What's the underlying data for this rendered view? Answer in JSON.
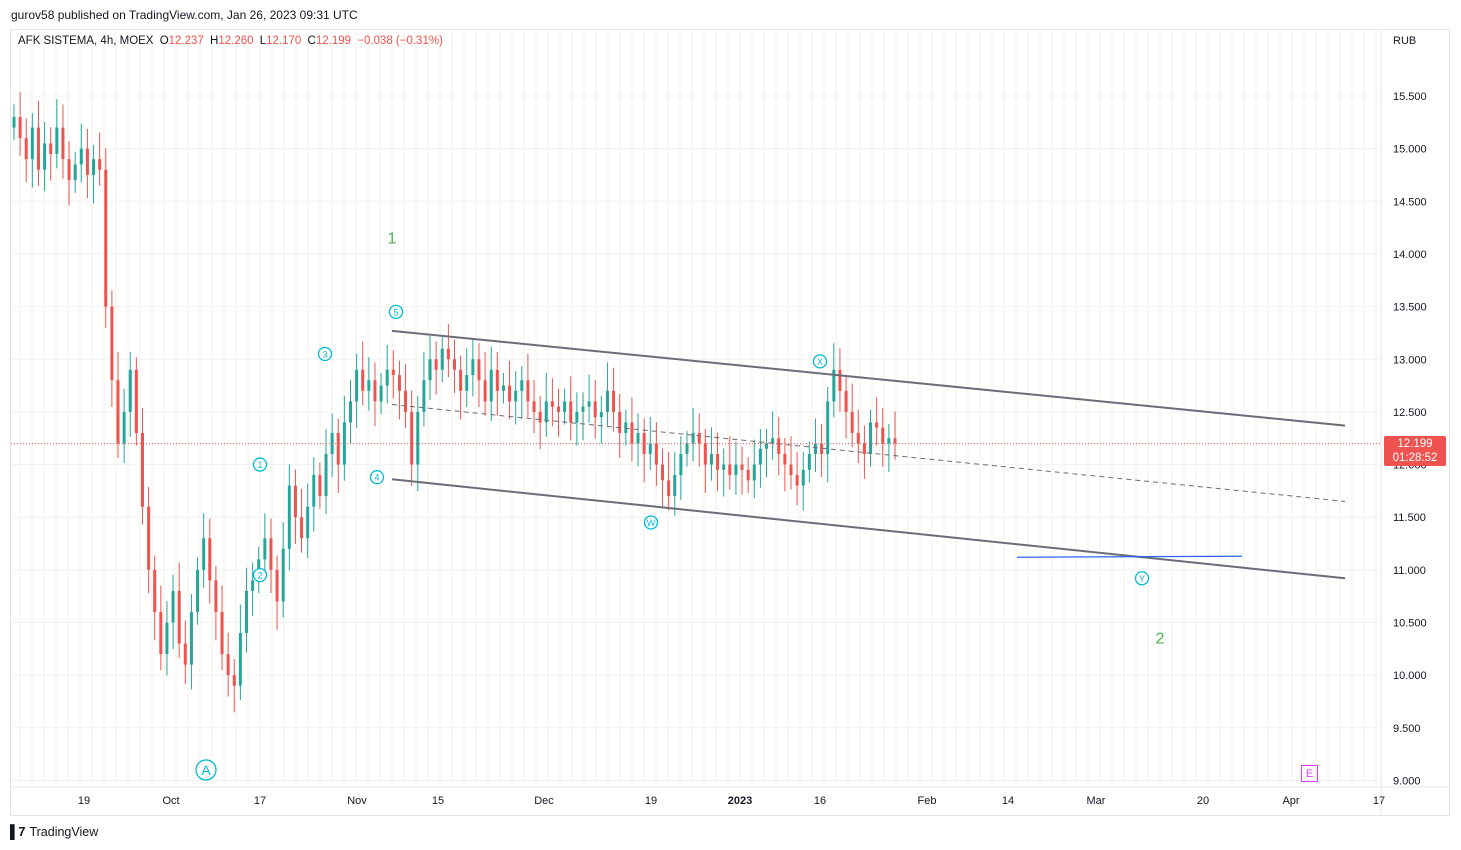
{
  "publish_line": "gurov58 published on TradingView.com, Jan 26, 2023 09:31 UTC",
  "legend": {
    "symbol": "AFK SISTEMA, 4h, MOEX",
    "o_label": "O",
    "o_value": "12.237",
    "h_label": "H",
    "h_value": "12.260",
    "l_label": "L",
    "l_value": "12.170",
    "c_label": "C",
    "c_value": "12.199",
    "change": "−0.038 (−0.31%)"
  },
  "currency": "RUB",
  "price_badge": {
    "price": "12.199",
    "countdown": "01:28:52"
  },
  "footer_brand": "TradingView",
  "e_button": "E",
  "colors": {
    "up": "#26a69a",
    "down": "#ef5350",
    "label": "#00bcd4",
    "wave": "#4caf50",
    "channel": "#6a6d78",
    "hline": "#2962ff"
  },
  "chart_data": {
    "type": "candlestick",
    "timeframe": "4h",
    "y_axis": {
      "ticks": [
        "15.500",
        "15.000",
        "14.500",
        "14.000",
        "13.500",
        "13.000",
        "12.500",
        "12.000",
        "11.500",
        "11.000",
        "10.500",
        "10.000",
        "9.500",
        "9.000"
      ],
      "range": [
        9.0,
        15.8
      ]
    },
    "x_axis": {
      "ticks": [
        "19",
        "Oct",
        "17",
        "Nov",
        "15",
        "Dec",
        "19",
        "2023",
        "16",
        "Feb",
        "14",
        "Mar",
        "20",
        "Apr",
        "17"
      ]
    },
    "last_price": 12.199,
    "wave_labels": [
      {
        "text": "1",
        "type": "major",
        "date": "Nov 7",
        "price": 14.1
      },
      {
        "text": "2",
        "type": "major",
        "date": "Mar 20",
        "price": 10.3
      },
      {
        "text": "A",
        "type": "circle-large",
        "date": "Oct 9",
        "price": 9.1
      },
      {
        "text": "1",
        "type": "circle",
        "date": "Oct 17",
        "price": 12.0
      },
      {
        "text": "2",
        "type": "circle",
        "date": "Oct 17",
        "price": 10.95
      },
      {
        "text": "3",
        "type": "circle",
        "date": "Oct 27",
        "price": 13.05
      },
      {
        "text": "4",
        "type": "circle",
        "date": "Nov 3",
        "price": 11.88
      },
      {
        "text": "5",
        "type": "circle",
        "date": "Nov 8",
        "price": 13.45
      },
      {
        "text": "W",
        "type": "circle",
        "date": "Dec 19",
        "price": 11.45
      },
      {
        "text": "X",
        "type": "circle",
        "date": "Jan 16",
        "price": 12.98
      },
      {
        "text": "Y",
        "type": "circle",
        "date": "Mar 13",
        "price": 10.92
      }
    ],
    "channel": {
      "upper": [
        {
          "date": "Nov 7",
          "price": 13.27
        },
        {
          "date": "Apr 12",
          "price": 12.37
        }
      ],
      "middle_dashed": [
        {
          "date": "Nov 7",
          "price": 12.57
        },
        {
          "date": "Apr 12",
          "price": 11.65
        }
      ],
      "lower": [
        {
          "date": "Nov 7",
          "price": 11.86
        },
        {
          "date": "Apr 12",
          "price": 10.92
        }
      ]
    },
    "horizontal_segment": {
      "price": 11.12,
      "from": "Feb 14",
      "to": "Mar 27"
    },
    "candles_approx": [
      15.3,
      15.1,
      14.9,
      15.2,
      14.8,
      15.05,
      14.95,
      15.2,
      14.9,
      14.7,
      14.85,
      15.0,
      14.75,
      14.9,
      14.8,
      13.5,
      12.8,
      12.2,
      12.5,
      12.9,
      12.3,
      11.6,
      11.0,
      10.6,
      10.2,
      10.5,
      10.8,
      10.3,
      10.1,
      10.6,
      11.0,
      11.3,
      10.9,
      10.6,
      10.2,
      10.0,
      9.9,
      10.4,
      10.8,
      10.9,
      11.1,
      11.3,
      11.0,
      10.7,
      11.2,
      11.8,
      11.5,
      11.3,
      11.6,
      11.9,
      11.7,
      12.1,
      12.3,
      12.0,
      12.4,
      12.6,
      12.9,
      12.7,
      12.8,
      12.6,
      12.75,
      12.9,
      12.85,
      12.7,
      12.5,
      12.0,
      12.5,
      12.8,
      13.0,
      12.9,
      13.1,
      13.0,
      12.9,
      12.7,
      12.85,
      13.0,
      12.8,
      12.6,
      12.9,
      12.7,
      12.75,
      12.6,
      12.7,
      12.8,
      12.6,
      12.5,
      12.4,
      12.6,
      12.55,
      12.5,
      12.6,
      12.4,
      12.5,
      12.55,
      12.6,
      12.45,
      12.5,
      12.7,
      12.5,
      12.3,
      12.4,
      12.2,
      12.3,
      12.1,
      12.2,
      12.0,
      11.85,
      11.7,
      11.9,
      12.1,
      12.2,
      12.3,
      12.2,
      12.0,
      12.1,
      11.95,
      12.0,
      11.9,
      12.0,
      11.95,
      11.85,
      12.0,
      12.15,
      12.2,
      12.25,
      12.1,
      12.0,
      11.9,
      11.8,
      11.95,
      12.1,
      12.2,
      12.1,
      12.6,
      12.9,
      12.7,
      12.5,
      12.3,
      12.2,
      12.1,
      12.4,
      12.35,
      12.2,
      12.25,
      12.2
    ]
  }
}
